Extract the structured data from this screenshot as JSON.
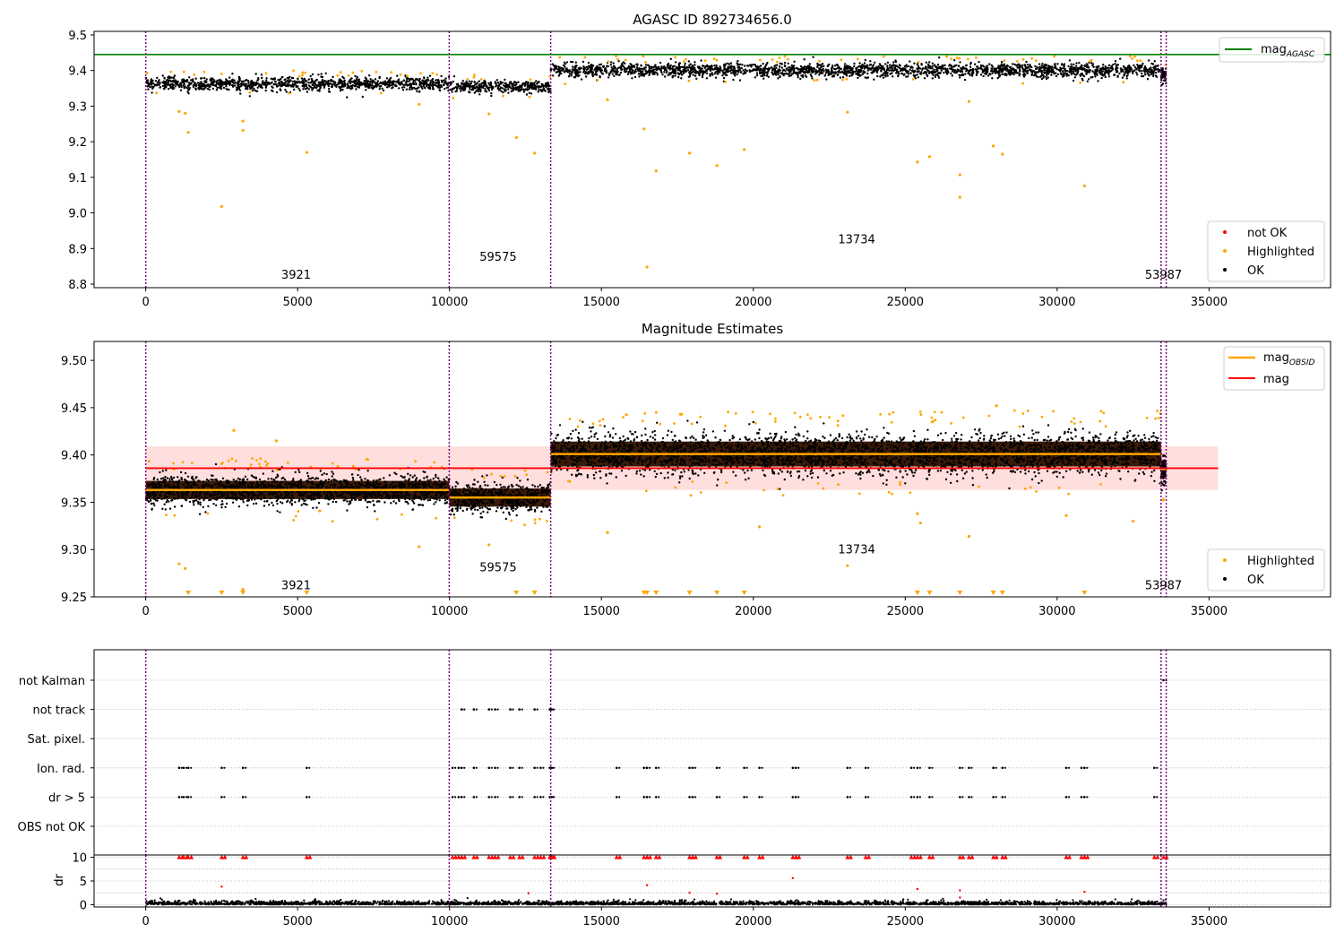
{
  "chart_data": [
    {
      "type": "scatter",
      "title": "AGASC ID 892734656.0",
      "xlim": [
        -1700,
        39000
      ],
      "ylim": [
        8.79,
        9.51
      ],
      "xticks": [
        0,
        5000,
        10000,
        15000,
        20000,
        25000,
        30000,
        35000
      ],
      "yticks": [
        8.8,
        8.9,
        9.0,
        9.1,
        9.2,
        9.3,
        9.4,
        9.5
      ],
      "ytick_labels": [
        "8.8",
        "8.9",
        "9.0",
        "9.1",
        "9.2",
        "9.3",
        "9.4",
        "9.5"
      ],
      "observation_boundaries": [
        0,
        9990,
        13330,
        33420,
        33590
      ],
      "observation_labels": [
        {
          "text": "3921",
          "x": 4950,
          "y": 8.815
        },
        {
          "text": "59575",
          "x": 11600,
          "y": 8.865
        },
        {
          "text": "13734",
          "x": 23400,
          "y": 8.915
        },
        {
          "text": "53987",
          "x": 33500,
          "y": 8.815
        }
      ],
      "reference_lines": [
        {
          "name": "magAGASC",
          "y": 9.445,
          "color": "#008000"
        }
      ],
      "segments": [
        {
          "x": [
            0,
            9990
          ],
          "center": 9.363,
          "spread": 0.013
        },
        {
          "x": [
            9990,
            13330
          ],
          "center": 9.355,
          "spread": 0.012
        },
        {
          "x": [
            13330,
            33420
          ],
          "center": 9.401,
          "spread": 0.014
        },
        {
          "x": [
            33420,
            33590
          ],
          "center": 9.385,
          "spread": 0.015
        }
      ],
      "series": [
        {
          "name": "not OK",
          "color": "#ff0000",
          "points": []
        },
        {
          "name": "Highlighted",
          "color": "#ffa500",
          "points": [
            [
              1100,
              9.285
            ],
            [
              1300,
              9.28
            ],
            [
              1400,
              9.226
            ],
            [
              2500,
              9.018
            ],
            [
              3200,
              9.258
            ],
            [
              3200,
              9.232
            ],
            [
              5300,
              9.17
            ],
            [
              12200,
              9.212
            ],
            [
              12800,
              9.168
            ],
            [
              11300,
              9.278
            ],
            [
              16400,
              9.236
            ],
            [
              16500,
              8.848
            ],
            [
              16800,
              9.118
            ],
            [
              17900,
              9.168
            ],
            [
              18800,
              9.133
            ],
            [
              19700,
              9.178
            ],
            [
              23100,
              9.283
            ],
            [
              25400,
              9.143
            ],
            [
              25800,
              9.158
            ],
            [
              26800,
              9.107
            ],
            [
              26800,
              9.044
            ],
            [
              27900,
              9.188
            ],
            [
              28200,
              9.165
            ],
            [
              30900,
              9.076
            ],
            [
              9000,
              9.305
            ],
            [
              15200,
              9.318
            ],
            [
              27100,
              9.313
            ]
          ]
        },
        {
          "name": "OK",
          "color": "#000000",
          "points": []
        }
      ],
      "legend_upper": [
        {
          "label_main": "mag",
          "label_sub": "AGASC",
          "color": "#008000"
        }
      ],
      "legend_lower": [
        {
          "label": "not OK",
          "color": "#ff0000"
        },
        {
          "label": "Highlighted",
          "color": "#ffa500"
        },
        {
          "label": "OK",
          "color": "#000000"
        }
      ]
    },
    {
      "type": "scatter",
      "title": "Magnitude Estimates",
      "xlim": [
        -1700,
        39000
      ],
      "ylim": [
        9.25,
        9.52
      ],
      "xticks": [
        0,
        5000,
        10000,
        15000,
        20000,
        25000,
        30000,
        35000
      ],
      "yticks": [
        9.25,
        9.3,
        9.35,
        9.4,
        9.45,
        9.5
      ],
      "ytick_labels": [
        "9.25",
        "9.30",
        "9.35",
        "9.40",
        "9.45",
        "9.50"
      ],
      "observation_boundaries": [
        0,
        9990,
        13330,
        33420,
        33590
      ],
      "observation_labels": [
        {
          "text": "3921",
          "x": 4950,
          "y": 9.258
        },
        {
          "text": "59575",
          "x": 11600,
          "y": 9.277
        },
        {
          "text": "13734",
          "x": 23400,
          "y": 9.296
        },
        {
          "text": "53987",
          "x": 33500,
          "y": 9.258
        }
      ],
      "mean_line": {
        "name": "mag",
        "y": 9.386,
        "band": [
          9.363,
          9.409
        ],
        "x": [
          0,
          35300
        ],
        "color": "#ff0000"
      },
      "obsid_levels": [
        {
          "x": [
            0,
            9990
          ],
          "y": 9.363
        },
        {
          "x": [
            9990,
            13330
          ],
          "y": 9.355
        },
        {
          "x": [
            13330,
            33420
          ],
          "y": 9.401
        },
        {
          "x": [
            33420,
            33590
          ],
          "y": 9.385
        }
      ],
      "clipped_markers_x": [
        1400,
        2500,
        3200,
        5300,
        12200,
        12800,
        16400,
        16500,
        16800,
        17900,
        18800,
        19700,
        25400,
        25800,
        26800,
        27900,
        28200,
        30900
      ],
      "series": [
        {
          "name": "Highlighted",
          "color": "#ffa500",
          "points": [
            [
              1100,
              9.285
            ],
            [
              1300,
              9.28
            ],
            [
              3200,
              9.258
            ],
            [
              9000,
              9.303
            ],
            [
              11300,
              9.305
            ],
            [
              15200,
              9.318
            ],
            [
              20200,
              9.324
            ],
            [
              23100,
              9.283
            ],
            [
              25400,
              9.338
            ],
            [
              25500,
              9.328
            ],
            [
              27100,
              9.314
            ],
            [
              30300,
              9.336
            ],
            [
              32500,
              9.33
            ],
            [
              4300,
              9.415
            ],
            [
              2900,
              9.426
            ],
            [
              17600,
              9.443
            ],
            [
              28000,
              9.452
            ]
          ]
        },
        {
          "name": "OK",
          "color": "#000000",
          "points": []
        }
      ],
      "legend_upper": [
        {
          "label_main": "mag",
          "label_sub": "OBSID",
          "color": "#ffa500"
        },
        {
          "label_main": "mag",
          "label_sub": "",
          "color": "#ff0000"
        }
      ],
      "legend_lower": [
        {
          "label": "Highlighted",
          "color": "#ffa500"
        },
        {
          "label": "OK",
          "color": "#000000"
        }
      ]
    },
    {
      "type": "scatter",
      "title": "",
      "xlim": [
        -1700,
        39000
      ],
      "xticks": [
        0,
        5000,
        10000,
        15000,
        20000,
        25000,
        30000,
        35000
      ],
      "observation_boundaries": [
        0,
        9990,
        13330,
        33420,
        33590
      ],
      "flag_rows": [
        "not Kalman",
        "not track",
        "Sat. pixel.",
        "Ion. rad.",
        "dr > 5",
        "OBS not OK"
      ],
      "flags": {
        "not Kalman": [
          33500
        ],
        "not track": [
          10400,
          10800,
          11300,
          11500,
          12000,
          12300,
          12800,
          13300,
          13350
        ],
        "Sat. pixel.": [],
        "Ion. rad.": [
          1100,
          1250,
          1400,
          2500,
          3200,
          5300,
          10100,
          10300,
          10400,
          10800,
          11300,
          11500,
          12000,
          12300,
          12800,
          13000,
          13300,
          13350,
          15500,
          16400,
          16500,
          16800,
          17900,
          18000,
          18800,
          19700,
          20200,
          21300,
          21400,
          23100,
          23700,
          25200,
          25400,
          25800,
          26800,
          27100,
          27900,
          28200,
          30300,
          30800,
          30900,
          33200
        ],
        "dr > 5": [
          1100,
          1250,
          1400,
          2500,
          3200,
          5300,
          10100,
          10300,
          10400,
          10800,
          11300,
          11500,
          12000,
          12300,
          12800,
          13000,
          13300,
          13350,
          15500,
          16400,
          16500,
          16800,
          17900,
          18000,
          18800,
          19700,
          20200,
          21300,
          21400,
          23100,
          23700,
          25200,
          25400,
          25800,
          26800,
          27100,
          27900,
          28200,
          30300,
          30800,
          30900,
          33200
        ],
        "OBS not OK": []
      },
      "dr_panel": {
        "ylabel": "dr",
        "ylim": [
          -0.5,
          10.5
        ],
        "yticks": [
          0,
          5,
          10
        ],
        "clipped_x": [
          1100,
          1250,
          1400,
          2500,
          3200,
          5300,
          10100,
          10300,
          10400,
          10800,
          11300,
          11500,
          12000,
          12300,
          12800,
          13000,
          13300,
          13350,
          15500,
          16400,
          16500,
          16800,
          17900,
          18000,
          18800,
          19700,
          20200,
          21300,
          21400,
          23100,
          23700,
          25200,
          25400,
          25800,
          26800,
          27100,
          27900,
          28200,
          30300,
          30800,
          30900,
          33200,
          33500
        ],
        "outliers": [
          [
            2500,
            3.8
          ],
          [
            21300,
            5.6
          ],
          [
            16500,
            4.1
          ],
          [
            25400,
            3.3
          ],
          [
            26800,
            3.0
          ],
          [
            17900,
            2.5
          ],
          [
            18800,
            2.3
          ],
          [
            30900,
            2.7
          ],
          [
            12600,
            2.4
          ],
          [
            26800,
            1.5
          ]
        ]
      }
    }
  ]
}
